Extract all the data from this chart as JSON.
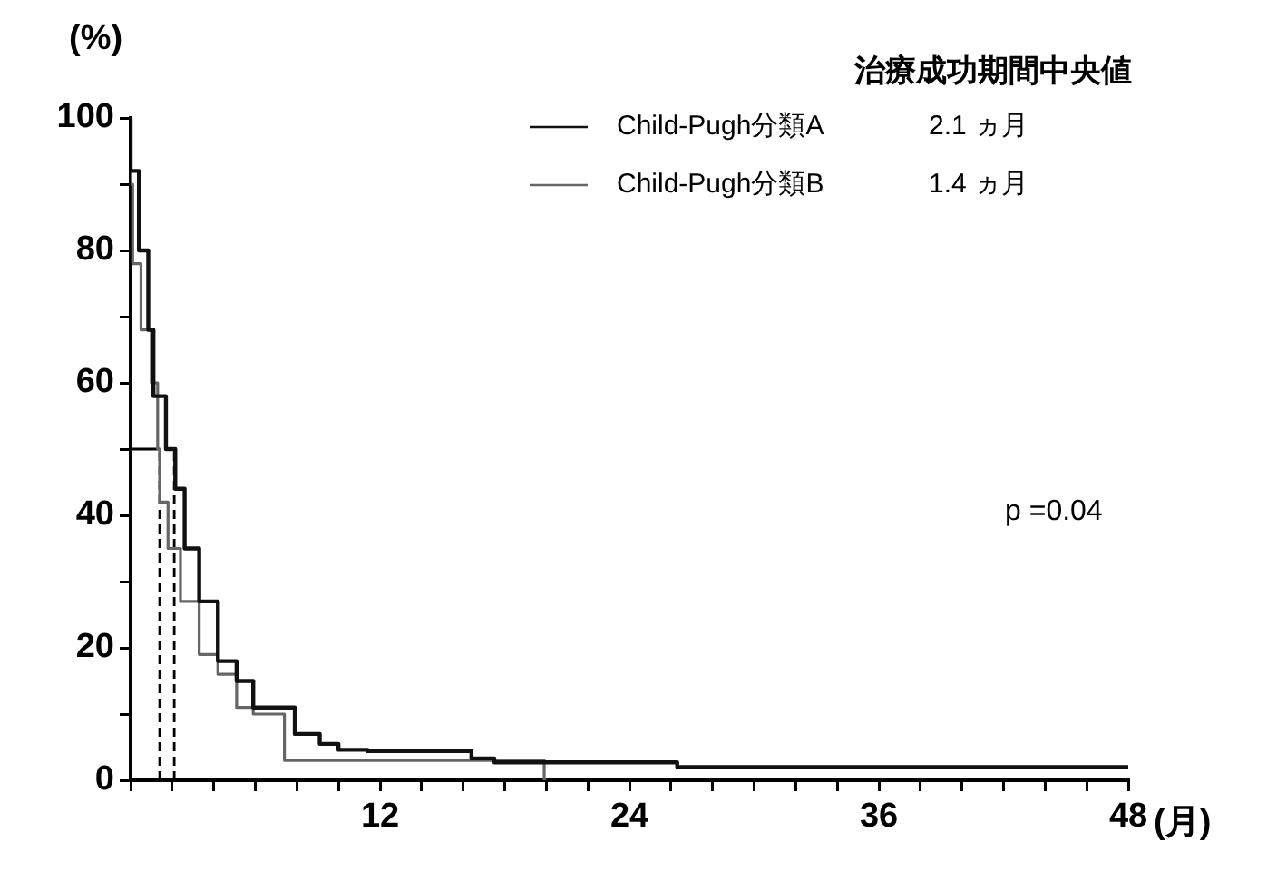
{
  "chart_data": {
    "type": "step",
    "ylabel": "(%)",
    "xlabel": "(月)",
    "legend_title": "治療成功期間中央値",
    "legend": "top right",
    "grid": false,
    "line_style": "solid",
    "marker": "none",
    "xlim": [
      0,
      48
    ],
    "ylim": [
      0,
      100
    ],
    "xticks": [
      {
        "value": 0,
        "label": null
      },
      {
        "value": 2,
        "label": null
      },
      {
        "value": 4,
        "label": null
      },
      {
        "value": 6,
        "label": null
      },
      {
        "value": 8,
        "label": null
      },
      {
        "value": 10,
        "label": null
      },
      12,
      {
        "value": 14,
        "label": null
      },
      {
        "value": 16,
        "label": null
      },
      {
        "value": 18,
        "label": null
      },
      {
        "value": 20,
        "label": null
      },
      {
        "value": 22,
        "label": null
      },
      24,
      {
        "value": 26,
        "label": null
      },
      {
        "value": 28,
        "label": null
      },
      {
        "value": 30,
        "label": null
      },
      {
        "value": 32,
        "label": null
      },
      {
        "value": 34,
        "label": null
      },
      36,
      {
        "value": 38,
        "label": null
      },
      {
        "value": 40,
        "label": null
      },
      {
        "value": 42,
        "label": null
      },
      {
        "value": 44,
        "label": null
      },
      {
        "value": 46,
        "label": null
      },
      48
    ],
    "yticks": [
      0,
      {
        "value": 10,
        "label": null
      },
      20,
      {
        "value": 30,
        "label": null
      },
      40,
      {
        "value": 50,
        "label": null
      },
      60,
      {
        "value": 70,
        "label": null
      },
      80,
      {
        "value": 90,
        "label": null
      },
      100
    ],
    "series": [
      {
        "name": "Child-Pugh分類A",
        "color": "#111111",
        "x": [
          0,
          0.4,
          0.85,
          1.1,
          1.7,
          2.15,
          2.6,
          3.3,
          4.2,
          5.1,
          5.9,
          7.9,
          9.1,
          10,
          11.4,
          12,
          16.4,
          17.5,
          26.3,
          48
        ],
        "values": [
          100,
          92,
          80,
          68,
          58,
          50,
          44,
          35,
          27,
          18,
          15,
          11,
          7,
          5.5,
          4.6,
          4.4,
          4.4,
          3.3,
          2.7,
          2
        ]
      },
      {
        "name": "Child-Pugh分類B",
        "color": "#666666",
        "x": [
          0,
          0.1,
          0.5,
          1,
          1.3,
          1.4,
          1.8,
          2.4,
          3.3,
          4.2,
          5.1,
          5.9,
          7.4,
          8.3,
          19.9,
          20
        ],
        "values": [
          100,
          90,
          78,
          68,
          60,
          50,
          42,
          35,
          27,
          19,
          16,
          11,
          10,
          3,
          3,
          0
        ]
      },
      {
        "type": "line",
        "color": "#000000",
        "x": [
          0,
          1.4
        ],
        "values": [
          50,
          50
        ]
      },
      {
        "type": "line",
        "color": "#000000",
        "line_style": "dashed",
        "x": [
          1.4,
          1.4
        ],
        "values": [
          0,
          50
        ]
      },
      {
        "type": "line",
        "color": "#000000",
        "line_style": "dashed",
        "x": [
          2.1,
          2.1
        ],
        "values": [
          0,
          50
        ]
      }
    ],
    "annotations": [
      "2.1 ヵ月",
      "1.4 ヵ月",
      "p =0.04"
    ]
  }
}
